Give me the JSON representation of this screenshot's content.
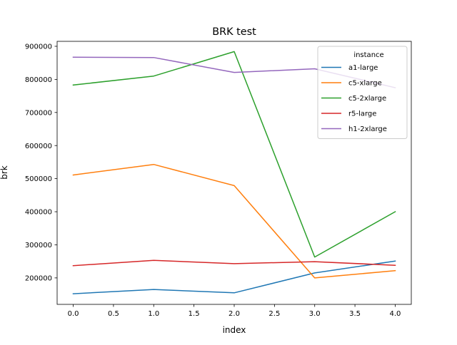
{
  "chart_data": {
    "type": "line",
    "title": "BRK test",
    "xlabel": "index",
    "ylabel": "brk",
    "x": [
      0,
      1,
      2,
      3,
      4
    ],
    "xlim": [
      -0.2,
      4.2
    ],
    "ylim": [
      120000,
      915000
    ],
    "x_ticks": [
      0.0,
      0.5,
      1.0,
      1.5,
      2.0,
      2.5,
      3.0,
      3.5,
      4.0
    ],
    "x_tick_labels": [
      "0.0",
      "0.5",
      "1.0",
      "1.5",
      "2.0",
      "2.5",
      "3.0",
      "3.5",
      "4.0"
    ],
    "y_ticks": [
      200000,
      300000,
      400000,
      500000,
      600000,
      700000,
      800000,
      900000
    ],
    "y_tick_labels": [
      "200000",
      "300000",
      "400000",
      "500000",
      "600000",
      "700000",
      "800000",
      "900000"
    ],
    "grid": false,
    "legend": {
      "title": "instance",
      "placement": "top-right"
    },
    "series": [
      {
        "name": "a1-large",
        "color": "#1f77b4",
        "values": [
          152000,
          165000,
          155000,
          215000,
          251000
        ]
      },
      {
        "name": "c5-xlarge",
        "color": "#ff7f0e",
        "values": [
          511000,
          543000,
          479000,
          200000,
          222000
        ]
      },
      {
        "name": "c5-2xlarge",
        "color": "#2ca02c",
        "values": [
          783000,
          810000,
          884000,
          263000,
          400000
        ]
      },
      {
        "name": "r5-large",
        "color": "#d62728",
        "values": [
          237000,
          253000,
          243000,
          249000,
          238000
        ]
      },
      {
        "name": "h1-2xlarge",
        "color": "#9467bd",
        "values": [
          867000,
          866000,
          821000,
          832000,
          775000
        ]
      }
    ]
  }
}
